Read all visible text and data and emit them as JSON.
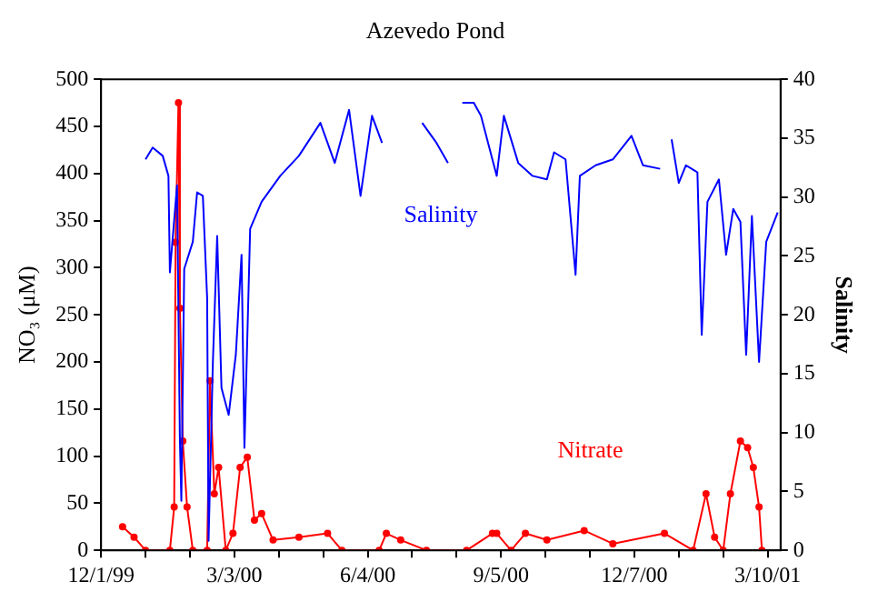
{
  "chart_data": {
    "type": "line",
    "title": "Azevedo Pond",
    "ylabel": "NO₃ (μM)",
    "y2label": "Salinity",
    "xlim": [
      "1999-12-01",
      "2001-03-19"
    ],
    "xticks": [
      {
        "value": "1999-12-01",
        "label": "12/1/99"
      },
      {
        "value": "2000-01-01",
        "label": null
      },
      {
        "value": "2000-02-01",
        "label": null
      },
      {
        "value": "2000-03-03",
        "label": "3/3/00"
      },
      {
        "value": "2000-04-03",
        "label": null
      },
      {
        "value": "2000-05-04",
        "label": null
      },
      {
        "value": "2000-06-04",
        "label": "6/4/00"
      },
      {
        "value": "2000-07-05",
        "label": null
      },
      {
        "value": "2000-08-05",
        "label": null
      },
      {
        "value": "2000-09-05",
        "label": "9/5/00"
      },
      {
        "value": "2000-10-06",
        "label": null
      },
      {
        "value": "2000-11-06",
        "label": null
      },
      {
        "value": "2000-12-07",
        "label": "12/7/00"
      },
      {
        "value": "2001-01-07",
        "label": null
      },
      {
        "value": "2001-02-07",
        "label": null
      },
      {
        "value": "2001-03-10",
        "label": "3/10/01"
      }
    ],
    "ylim": [
      0,
      500
    ],
    "yticks": [
      0,
      50,
      100,
      150,
      200,
      250,
      300,
      350,
      400,
      450,
      500
    ],
    "y2lim": [
      0,
      40
    ],
    "y2ticks": [
      0,
      5,
      10,
      15,
      20,
      25,
      30,
      35,
      40
    ],
    "grid": false,
    "legend": false,
    "series": [
      {
        "name": "Salinity",
        "color": "#0000ff",
        "axis": "y2",
        "marker": "none",
        "x": [
          "2000-01-01",
          "2000-01-06",
          "2000-01-13",
          "2000-01-17",
          "2000-01-18",
          "2000-01-23",
          "2000-01-25",
          "2000-01-26",
          "2000-01-28",
          "2000-02-03",
          "2000-02-06",
          "2000-02-10",
          "2000-02-13",
          "2000-02-14",
          "2000-02-17",
          "2000-02-20",
          "2000-02-23",
          "2000-02-28",
          "2000-03-04",
          "2000-03-08",
          "2000-03-10",
          "2000-03-14",
          "2000-03-22",
          "2000-04-04",
          "2000-04-17",
          "2000-05-02",
          "2000-05-12",
          "2000-05-22",
          "2000-05-30",
          "2000-06-07",
          "2000-06-14",
          "2000-06-28",
          "2000-07-12",
          "2000-07-22",
          "2000-07-30",
          "2000-08-04",
          "2000-08-09",
          "2000-08-17",
          "2000-08-22",
          "2000-09-02",
          "2000-09-07",
          "2000-09-17",
          "2000-09-27",
          "2000-10-07",
          "2000-10-12",
          "2000-10-20",
          "2000-10-27",
          "2000-10-30",
          "2000-11-10",
          "2000-11-22",
          "2000-12-05",
          "2000-12-13",
          "2000-12-25",
          "2000-12-29",
          "2001-01-02",
          "2001-01-07",
          "2001-01-12",
          "2001-01-20",
          "2001-01-23",
          "2001-01-27",
          "2001-02-04",
          "2001-02-09",
          "2001-02-14",
          "2001-02-19",
          "2001-02-23",
          "2001-02-27",
          "2001-03-04",
          "2001-03-09",
          "2001-03-17"
        ],
        "values": [
          33.2,
          34.2,
          33.5,
          31.8,
          23.6,
          31.0,
          9.3,
          4.2,
          23.9,
          26.2,
          30.4,
          30.1,
          21.4,
          0.8,
          16,
          26.7,
          13.8,
          11.5,
          16.6,
          25.1,
          8.7,
          27.3,
          29.6,
          31.8,
          33.5,
          36.3,
          32.9,
          37.4,
          30.1,
          36.9,
          34.6,
          null,
          36.3,
          34.6,
          32.9,
          null,
          38,
          38,
          36.9,
          31.8,
          36.9,
          32.9,
          31.8,
          31.5,
          33.8,
          33.2,
          23.4,
          31.8,
          32.7,
          33.2,
          35.2,
          32.7,
          32.4,
          null,
          34.9,
          31.2,
          32.7,
          32.1,
          18.3,
          29.6,
          31.5,
          25.1,
          29,
          27.9,
          16.6,
          28.4,
          16,
          26.2,
          28.7
        ]
      },
      {
        "name": "Nitrate",
        "color": "#ff0000",
        "marker": "circle",
        "x": [
          "1999-12-16",
          "1999-12-24",
          "2000-01-01",
          "2000-01-18",
          "2000-01-21",
          "2000-01-22",
          "2000-01-24",
          "2000-01-25",
          "2000-01-27",
          "2000-01-30",
          "2000-02-03",
          "2000-02-13",
          "2000-02-15",
          "2000-02-18",
          "2000-02-21",
          "2000-02-26",
          "2000-03-02",
          "2000-03-07",
          "2000-03-12",
          "2000-03-17",
          "2000-03-22",
          "2000-03-30",
          "2000-04-17",
          "2000-05-07",
          "2000-05-17",
          "2000-06-12",
          "2000-06-17",
          "2000-06-27",
          "2000-07-15",
          "2000-08-12",
          "2000-08-30",
          "2000-09-02",
          "2000-09-12",
          "2000-09-22",
          "2000-10-07",
          "2000-11-02",
          "2000-11-22",
          "2000-12-28",
          "2001-01-17",
          "2001-01-26",
          "2001-02-01",
          "2001-02-07",
          "2001-02-12",
          "2001-02-19",
          "2001-02-24",
          "2001-02-28",
          "2001-03-04",
          "2001-03-06"
        ],
        "values": [
          25,
          14,
          0,
          0,
          46,
          327,
          475,
          257,
          116,
          46,
          0,
          0,
          180,
          60,
          88,
          0,
          18,
          88,
          99,
          32,
          39,
          11,
          14,
          18,
          0,
          0,
          18,
          11,
          0,
          0,
          18,
          18,
          0,
          18,
          11,
          21,
          7,
          18,
          0,
          60,
          14,
          0,
          60,
          116,
          109,
          88,
          46,
          0
        ]
      }
    ]
  }
}
